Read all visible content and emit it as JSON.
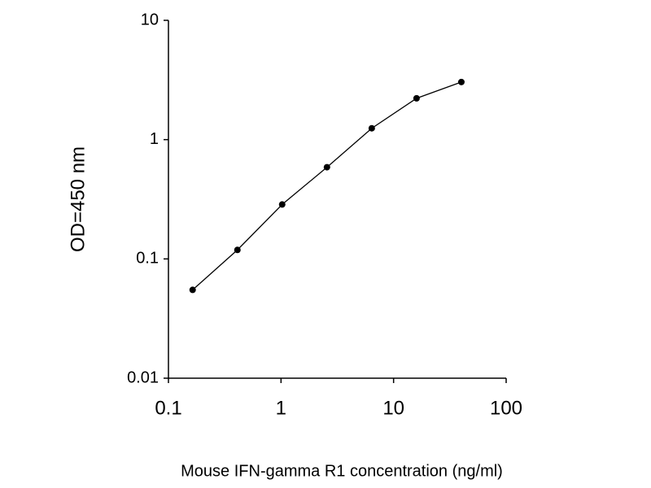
{
  "chart_data": {
    "type": "line",
    "xlabel": "Mouse IFN-gamma R1 concentration (ng/ml)",
    "ylabel": "OD=450 nm",
    "x": [
      0.164,
      0.41,
      1.024,
      2.56,
      6.4,
      16,
      40
    ],
    "series": [
      {
        "name": "OD",
        "color": "#000000",
        "values": [
          0.055,
          0.119,
          0.286,
          0.587,
          1.245,
          2.22,
          3.04
        ]
      }
    ],
    "xlim": [
      0.1,
      100
    ],
    "xticks": [
      0.1,
      1,
      10,
      100
    ],
    "ylim": [
      0.01,
      10
    ],
    "yticks": [
      0.01,
      0.1,
      1,
      10
    ],
    "xscale": "log",
    "yscale": "log",
    "grid": false
  }
}
